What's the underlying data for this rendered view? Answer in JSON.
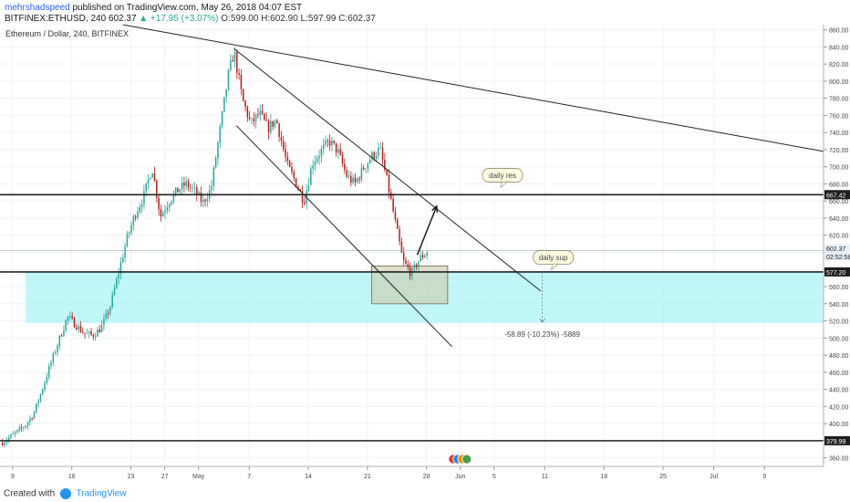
{
  "header": {
    "author": "mehrshadspeed",
    "published": "published on TradingView.com, May 26, 2018 04:07 EST",
    "symbol": "BITFINEX:ETHUSD, 240",
    "last": "602.37",
    "change": "▲ +17.95 (+3.07%)",
    "ohlc": "O:599.00 H:602.90 L:597.99 C:602.37"
  },
  "footer": {
    "created": "Created with",
    "brand": "TradingView"
  },
  "colors": {
    "zone": "#8ff0f5",
    "bull": "#26a69a",
    "bear": "#b71c1c",
    "line": "#222222",
    "accent": "#2962ff",
    "box": "#c8c8a0"
  },
  "chart_data": {
    "type": "candlestick",
    "title": "Ethereum / Dollar, 240, BITFINEX",
    "y_ticks": [
      "860.00",
      "840.00",
      "820.00",
      "800.00",
      "780.00",
      "760.00",
      "740.00",
      "720.00",
      "700.00",
      "680.00",
      "660.00",
      "640.00",
      "620.00",
      "600.00",
      "580.00",
      "560.00",
      "540.00",
      "520.00",
      "500.00",
      "480.00",
      "460.00",
      "440.00",
      "420.00",
      "400.00",
      "380.00",
      "360.00"
    ],
    "ylim": [
      350,
      866
    ],
    "x_labels": [
      "9",
      "16",
      "23",
      "27",
      "May",
      "7",
      "14",
      "21",
      "28",
      "Jun",
      "5",
      "11",
      "18",
      "25",
      "Jul",
      "9"
    ],
    "x_label_days": [
      0,
      7,
      14,
      18,
      22,
      28,
      35,
      42,
      49,
      53,
      57,
      63,
      70,
      77,
      83,
      89
    ],
    "xlim_days": [
      -1.5,
      96
    ],
    "last_price": "602.37",
    "countdown": "02:52:58",
    "price_labels": [
      "667.42",
      "577.20",
      "379.99"
    ],
    "horizontal_lines": [
      667.42,
      577.2,
      379.99
    ],
    "support_zone": {
      "from_day": 1.5,
      "to_day": 96,
      "low": 517.5,
      "high": 577.2
    },
    "measure": {
      "text": "-58.89 (-10.23%) -5889",
      "x_day": 62.7,
      "from": 577.2,
      "to": 518.3
    },
    "annotations": [
      {
        "text": "daily res",
        "x_day": 58,
        "y": 690
      },
      {
        "text": "daily sup",
        "x_day": 64,
        "y": 594
      }
    ],
    "trendlines": [
      {
        "x1_day": 13,
        "y1": 866,
        "x2_day": 96,
        "y2": 718
      },
      {
        "x1_day": 26.2,
        "y1": 838,
        "x2_day": 62.5,
        "y2": 555
      },
      {
        "x1_day": 26.5,
        "y1": 748,
        "x2_day": 52,
        "y2": 490
      }
    ],
    "arrow": {
      "x1_day": 47.9,
      "y1": 597,
      "x2_day": 50.2,
      "y2": 654
    },
    "box": {
      "from_day": 42.5,
      "to_day": 51.5,
      "low": 540,
      "high": 584
    },
    "events_icon_day": 53
  }
}
